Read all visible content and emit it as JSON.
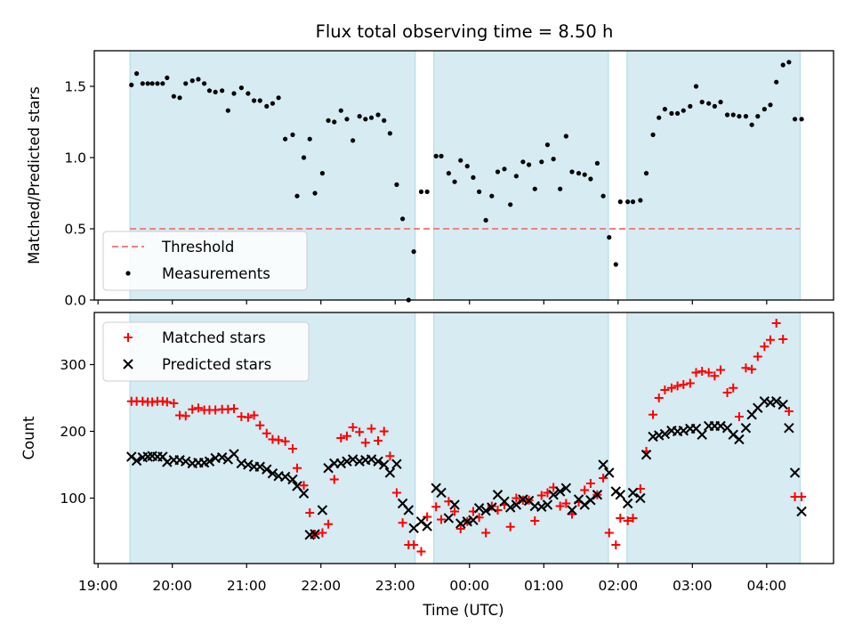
{
  "chart_data": {
    "type": "scatter",
    "title": "Flux total observing time = 8.50 h",
    "xlabel": "Time (UTC)",
    "x_range_hours": [
      18.95,
      28.9
    ],
    "x_ticks": [
      {
        "h": 19,
        "label": "19:00"
      },
      {
        "h": 20,
        "label": "20:00"
      },
      {
        "h": 21,
        "label": "21:00"
      },
      {
        "h": 22,
        "label": "22:00"
      },
      {
        "h": 23,
        "label": "23:00"
      },
      {
        "h": 24,
        "label": "00:00"
      },
      {
        "h": 25,
        "label": "01:00"
      },
      {
        "h": 26,
        "label": "02:00"
      },
      {
        "h": 27,
        "label": "03:00"
      },
      {
        "h": 28,
        "label": "04:00"
      }
    ],
    "observing_windows_hours": [
      [
        19.43,
        23.27
      ],
      [
        23.52,
        25.87
      ],
      [
        26.12,
        28.45
      ]
    ],
    "panels": [
      {
        "id": "ratio",
        "ylabel": "Matched/Predicted stars",
        "ylim": [
          0,
          1.75
        ],
        "y_ticks": [
          {
            "v": 0.0,
            "label": "0.0"
          },
          {
            "v": 0.5,
            "label": "0.5"
          },
          {
            "v": 1.0,
            "label": "1.0"
          },
          {
            "v": 1.5,
            "label": "1.5"
          }
        ],
        "threshold": {
          "name": "Threshold",
          "value": 0.5,
          "color": "#f08080"
        },
        "legend": [
          {
            "name": "Threshold",
            "marker": "dash",
            "color": "#f08080"
          },
          {
            "name": "Measurements",
            "marker": "dot",
            "color": "#000000"
          }
        ],
        "series": [
          {
            "name": "Measurements",
            "marker": "dot",
            "color": "#000000",
            "x": [
              19.45,
              19.52,
              19.6,
              19.67,
              19.73,
              19.8,
              19.87,
              19.93,
              20.02,
              20.1,
              20.18,
              20.27,
              20.35,
              20.43,
              20.5,
              20.58,
              20.67,
              20.75,
              20.83,
              20.93,
              21.02,
              21.1,
              21.18,
              21.27,
              21.35,
              21.43,
              21.52,
              21.62,
              21.68,
              21.77,
              21.85,
              21.92,
              22.02,
              22.1,
              22.18,
              22.27,
              22.35,
              22.43,
              22.52,
              22.6,
              22.68,
              22.77,
              22.85,
              22.93,
              23.02,
              23.1,
              23.18,
              23.25,
              23.35,
              23.43,
              23.55,
              23.62,
              23.72,
              23.8,
              23.88,
              23.97,
              24.05,
              24.13,
              24.22,
              24.3,
              24.38,
              24.47,
              24.55,
              24.63,
              24.72,
              24.8,
              24.88,
              24.97,
              25.05,
              25.13,
              25.22,
              25.3,
              25.38,
              25.47,
              25.55,
              25.63,
              25.72,
              25.8,
              25.88,
              25.97,
              26.03,
              26.13,
              26.2,
              26.3,
              26.38,
              26.47,
              26.55,
              26.63,
              26.72,
              26.8,
              26.88,
              26.97,
              27.05,
              27.13,
              27.22,
              27.3,
              27.38,
              27.47,
              27.55,
              27.63,
              27.72,
              27.8,
              27.88,
              27.97,
              28.05,
              28.13,
              28.22,
              28.3,
              28.38,
              28.47
            ],
            "y": [
              1.51,
              1.59,
              1.52,
              1.52,
              1.52,
              1.52,
              1.52,
              1.56,
              1.43,
              1.42,
              1.52,
              1.54,
              1.55,
              1.52,
              1.47,
              1.46,
              1.47,
              1.33,
              1.45,
              1.49,
              1.45,
              1.4,
              1.4,
              1.36,
              1.38,
              1.42,
              1.13,
              1.16,
              0.73,
              1.0,
              1.13,
              0.75,
              0.89,
              1.26,
              1.25,
              1.33,
              1.27,
              1.12,
              1.29,
              1.27,
              1.28,
              1.3,
              1.26,
              1.17,
              0.81,
              0.57,
              0.0,
              0.34,
              0.76,
              0.76,
              1.01,
              1.01,
              0.89,
              0.83,
              0.98,
              0.94,
              0.86,
              0.76,
              0.56,
              0.73,
              0.9,
              0.92,
              0.67,
              0.87,
              0.97,
              0.95,
              0.78,
              0.97,
              1.09,
              0.99,
              0.78,
              1.15,
              0.9,
              0.89,
              0.88,
              0.85,
              0.96,
              0.73,
              0.44,
              0.25,
              0.69,
              0.69,
              0.69,
              0.7,
              0.89,
              1.16,
              1.28,
              1.34,
              1.31,
              1.31,
              1.33,
              1.36,
              1.5,
              1.39,
              1.38,
              1.36,
              1.39,
              1.3,
              1.3,
              1.29,
              1.29,
              1.23,
              1.29,
              1.34,
              1.37,
              1.53,
              1.65,
              1.67,
              1.27,
              1.27
            ]
          }
        ]
      },
      {
        "id": "count",
        "ylabel": "Count",
        "ylim": [
          2,
          378
        ],
        "y_ticks": [
          {
            "v": 100,
            "label": "100"
          },
          {
            "v": 200,
            "label": "200"
          },
          {
            "v": 300,
            "label": "300"
          }
        ],
        "legend": [
          {
            "name": "Matched stars",
            "marker": "plus",
            "color": "#ff0000"
          },
          {
            "name": "Predicted stars",
            "marker": "x",
            "color": "#000000"
          }
        ],
        "series": [
          {
            "name": "Matched stars",
            "marker": "plus",
            "color": "#ff0000",
            "x": [
              19.45,
              19.52,
              19.6,
              19.67,
              19.73,
              19.8,
              19.87,
              19.93,
              20.02,
              20.1,
              20.18,
              20.27,
              20.35,
              20.43,
              20.5,
              20.58,
              20.67,
              20.75,
              20.83,
              20.93,
              21.02,
              21.1,
              21.18,
              21.27,
              21.35,
              21.43,
              21.52,
              21.62,
              21.68,
              21.77,
              21.85,
              21.92,
              22.02,
              22.1,
              22.18,
              22.27,
              22.35,
              22.43,
              22.52,
              22.6,
              22.68,
              22.77,
              22.85,
              22.93,
              23.02,
              23.1,
              23.18,
              23.25,
              23.35,
              23.43,
              23.55,
              23.62,
              23.72,
              23.8,
              23.88,
              23.97,
              24.05,
              24.13,
              24.22,
              24.3,
              24.38,
              24.47,
              24.55,
              24.63,
              24.72,
              24.8,
              24.88,
              24.97,
              25.05,
              25.13,
              25.22,
              25.3,
              25.38,
              25.47,
              25.55,
              25.63,
              25.72,
              25.8,
              25.88,
              25.97,
              26.03,
              26.13,
              26.2,
              26.3,
              26.38,
              26.47,
              26.55,
              26.63,
              26.72,
              26.8,
              26.88,
              26.97,
              27.05,
              27.13,
              27.22,
              27.3,
              27.38,
              27.47,
              27.55,
              27.63,
              27.72,
              27.8,
              27.88,
              27.97,
              28.05,
              28.13,
              28.22,
              28.3,
              28.38,
              28.47
            ],
            "y": [
              245,
              245,
              245,
              244,
              244,
              245,
              245,
              244,
              242,
              224,
              223,
              233,
              235,
              232,
              232,
              232,
              233,
              233,
              234,
              222,
              221,
              224,
              209,
              197,
              188,
              187,
              185,
              174,
              145,
              119,
              78,
              46,
              48,
              61,
              128,
              190,
              193,
              206,
              199,
              183,
              204,
              186,
              200,
              163,
              108,
              63,
              30,
              30,
              20,
              72,
              87,
              68,
              95,
              80,
              54,
              65,
              80,
              71,
              48,
              88,
              82,
              90,
              57,
              100,
              97,
              97,
              66,
              104,
              108,
              116,
              88,
              92,
              76,
              94,
              112,
              122,
              105,
              130,
              48,
              30,
              70,
              66,
              70,
              114,
              170,
              225,
              250,
              262,
              265,
              268,
              270,
              272,
              288,
              290,
              288,
              283,
              292,
              258,
              265,
              222,
              295,
              293,
              312,
              327,
              337,
              362,
              338,
              230,
              102,
              102
            ]
          },
          {
            "name": "Predicted stars",
            "marker": "x",
            "color": "#000000",
            "x": [
              19.45,
              19.52,
              19.6,
              19.67,
              19.73,
              19.8,
              19.87,
              19.93,
              20.02,
              20.1,
              20.18,
              20.27,
              20.35,
              20.43,
              20.5,
              20.58,
              20.67,
              20.75,
              20.83,
              20.93,
              21.02,
              21.1,
              21.18,
              21.27,
              21.35,
              21.43,
              21.52,
              21.62,
              21.68,
              21.77,
              21.85,
              21.92,
              22.02,
              22.1,
              22.18,
              22.27,
              22.35,
              22.43,
              22.52,
              22.6,
              22.68,
              22.77,
              22.85,
              22.93,
              23.02,
              23.1,
              23.18,
              23.25,
              23.35,
              23.43,
              23.55,
              23.62,
              23.72,
              23.8,
              23.88,
              23.97,
              24.05,
              24.13,
              24.22,
              24.3,
              24.38,
              24.47,
              24.55,
              24.63,
              24.72,
              24.8,
              24.88,
              24.97,
              25.05,
              25.13,
              25.22,
              25.3,
              25.38,
              25.47,
              25.55,
              25.63,
              25.72,
              25.8,
              25.88,
              25.97,
              26.03,
              26.13,
              26.2,
              26.3,
              26.38,
              26.47,
              26.55,
              26.63,
              26.72,
              26.8,
              26.88,
              26.97,
              27.05,
              27.13,
              27.22,
              27.3,
              27.38,
              27.47,
              27.55,
              27.63,
              27.72,
              27.8,
              27.88,
              27.97,
              28.05,
              28.13,
              28.22,
              28.3,
              28.38,
              28.47
            ],
            "y": [
              162,
              156,
              161,
              162,
              163,
              162,
              162,
              154,
              157,
              157,
              155,
              152,
              153,
              153,
              155,
              160,
              161,
              158,
              166,
              152,
              150,
              147,
              147,
              143,
              137,
              133,
              132,
              128,
              118,
              107,
              45,
              46,
              82,
              145,
              152,
              152,
              155,
              158,
              155,
              157,
              158,
              155,
              150,
              138,
              151,
              92,
              82,
              55,
              65,
              58,
              115,
              108,
              70,
              90,
              62,
              65,
              67,
              85,
              81,
              86,
              105,
              95,
              86,
              90,
              98,
              96,
              88,
              87,
              90,
              105,
              110,
              115,
              82,
              98,
              90,
              97,
              105,
              150,
              138,
              110,
              105,
              92,
              108,
              100,
              165,
              192,
              194,
              196,
              201,
              200,
              201,
              204,
              204,
              195,
              208,
              208,
              208,
              205,
              195,
              188,
              205,
              225,
              235,
              245,
              243,
              245,
              240,
              205,
              138,
              80
            ]
          }
        ]
      }
    ]
  }
}
